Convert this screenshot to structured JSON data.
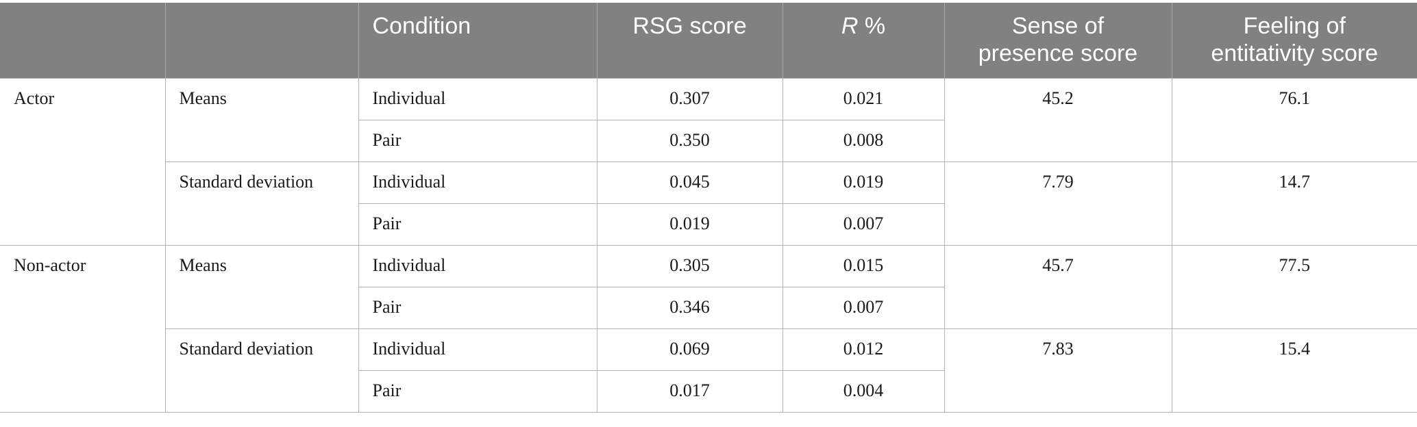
{
  "headers": {
    "blank1": "",
    "blank2": "",
    "condition": "Condition",
    "rsg": "RSG score",
    "r_var": "R",
    "r_unit": " %",
    "presence_line1": "Sense of",
    "presence_line2": "presence score",
    "entitativity_line1": "Feeling of",
    "entitativity_line2": "entitativity score"
  },
  "groups": [
    {
      "label": "Actor",
      "stats": [
        {
          "label": "Means",
          "presence": "45.2",
          "entitativity": "76.1",
          "rows": [
            {
              "condition": "Individual",
              "rsg": "0.307",
              "r": "0.021"
            },
            {
              "condition": "Pair",
              "rsg": "0.350",
              "r": "0.008"
            }
          ]
        },
        {
          "label": "Standard deviation",
          "presence": "7.79",
          "entitativity": "14.7",
          "rows": [
            {
              "condition": "Individual",
              "rsg": "0.045",
              "r": "0.019"
            },
            {
              "condition": "Pair",
              "rsg": "0.019",
              "r": "0.007"
            }
          ]
        }
      ]
    },
    {
      "label": "Non-actor",
      "stats": [
        {
          "label": "Means",
          "presence": "45.7",
          "entitativity": "77.5",
          "rows": [
            {
              "condition": "Individual",
              "rsg": "0.305",
              "r": "0.015"
            },
            {
              "condition": "Pair",
              "rsg": "0.346",
              "r": "0.007"
            }
          ]
        },
        {
          "label": "Standard deviation",
          "presence": "7.83",
          "entitativity": "15.4",
          "rows": [
            {
              "condition": "Individual",
              "rsg": "0.069",
              "r": "0.012"
            },
            {
              "condition": "Pair",
              "rsg": "0.017",
              "r": "0.004"
            }
          ]
        }
      ]
    }
  ]
}
